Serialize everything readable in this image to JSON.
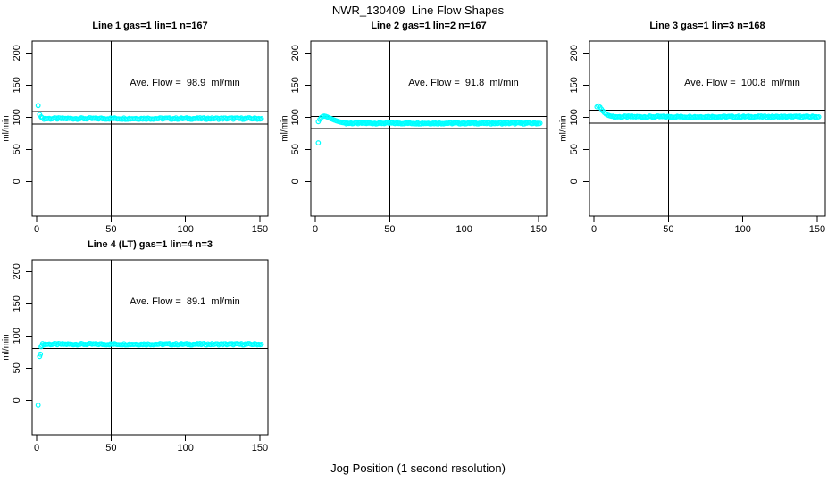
{
  "figure": {
    "title": "NWR_130409  Line Flow Shapes",
    "xlabel": "Jog Position (1 second resolution)",
    "background": "#ffffff",
    "point_color": "#00ffff",
    "axis_color": "#000000"
  },
  "chart_data": [
    {
      "type": "scatter",
      "title": "Line 1 gas=1 lin=1 n=167",
      "annotation": "Ave. Flow =  98.9  ml/min",
      "ave_flow_ml_min": 98.9,
      "ylabel": "ml/min",
      "x_ticks": [
        0,
        50,
        100,
        150
      ],
      "y_ticks": [
        0,
        50,
        100,
        150,
        200
      ],
      "xlim": [
        0,
        151
      ],
      "ylim": [
        -50,
        215
      ],
      "ref_line_upper": 108.8,
      "ref_line_lower": 89.0,
      "ref_line_vertical_x": 50,
      "points": [
        [
          1,
          118
        ],
        [
          2,
          104
        ],
        [
          3,
          100.5
        ],
        [
          3.5,
          99
        ]
      ],
      "band": {
        "x_start": 4,
        "x_end": 151,
        "y": 97.8,
        "spread": 2.4
      }
    },
    {
      "type": "scatter",
      "title": "Line 2 gas=1 lin=2 n=167",
      "annotation": "Ave. Flow =  91.8  ml/min",
      "ave_flow_ml_min": 91.8,
      "ylabel": "ml/min",
      "x_ticks": [
        0,
        50,
        100,
        150
      ],
      "y_ticks": [
        0,
        50,
        100,
        150,
        200
      ],
      "xlim": [
        0,
        151
      ],
      "ylim": [
        -50,
        215
      ],
      "ref_line_upper": 101.0,
      "ref_line_lower": 82.6,
      "ref_line_vertical_x": 50,
      "points": [
        [
          2,
          60
        ],
        [
          2,
          93
        ],
        [
          3,
          96.5
        ],
        [
          4,
          99.5
        ],
        [
          5,
          101
        ],
        [
          6,
          101.8
        ],
        [
          7,
          101.2
        ],
        [
          8,
          100.3
        ],
        [
          9,
          99.2
        ],
        [
          10,
          98.2
        ],
        [
          11,
          97.2
        ],
        [
          12,
          96.2
        ],
        [
          13,
          95.3
        ],
        [
          14,
          94.4
        ],
        [
          15,
          93.6
        ],
        [
          16,
          92.9
        ],
        [
          17,
          92.3
        ],
        [
          18,
          91.8
        ],
        [
          19,
          91.3
        ]
      ],
      "band": {
        "x_start": 20,
        "x_end": 151,
        "y": 90.6,
        "spread": 2.2
      }
    },
    {
      "type": "scatter",
      "title": "Line 3 gas=1 lin=3 n=168",
      "annotation": "Ave. Flow =  100.8  ml/min",
      "ave_flow_ml_min": 100.8,
      "ylabel": "ml/min",
      "x_ticks": [
        0,
        50,
        100,
        150
      ],
      "y_ticks": [
        0,
        50,
        100,
        150,
        200
      ],
      "xlim": [
        0,
        151
      ],
      "ylim": [
        -50,
        215
      ],
      "ref_line_upper": 110.9,
      "ref_line_lower": 90.7,
      "ref_line_vertical_x": 50,
      "points": [
        [
          2,
          116
        ],
        [
          3,
          117.5
        ],
        [
          4,
          115.5
        ],
        [
          5,
          112.5
        ],
        [
          6,
          109.5
        ],
        [
          7,
          107
        ],
        [
          8,
          105
        ],
        [
          9,
          103.5
        ],
        [
          10,
          102.5
        ],
        [
          11,
          101.8
        ],
        [
          12,
          101.3
        ]
      ],
      "band": {
        "x_start": 13,
        "x_end": 151,
        "y": 100.6,
        "spread": 2.2
      }
    },
    {
      "type": "scatter",
      "title": "Line 4 (LT) gas=1 lin=4 n=3",
      "annotation": "Ave. Flow =  89.1  ml/min",
      "ave_flow_ml_min": 89.1,
      "ylabel": "ml/min",
      "x_ticks": [
        0,
        50,
        100,
        150
      ],
      "y_ticks": [
        0,
        50,
        100,
        150,
        200
      ],
      "xlim": [
        0,
        151
      ],
      "ylim": [
        -50,
        215
      ],
      "ref_line_upper": 98.0,
      "ref_line_lower": 80.2,
      "ref_line_vertical_x": 50,
      "points": [
        [
          1,
          -8
        ],
        [
          2,
          68
        ],
        [
          2.5,
          71.5
        ],
        [
          3,
          83
        ],
        [
          3.5,
          85
        ]
      ],
      "band": {
        "x_start": 4,
        "x_end": 151,
        "y": 86.8,
        "spread": 2.4
      }
    }
  ]
}
